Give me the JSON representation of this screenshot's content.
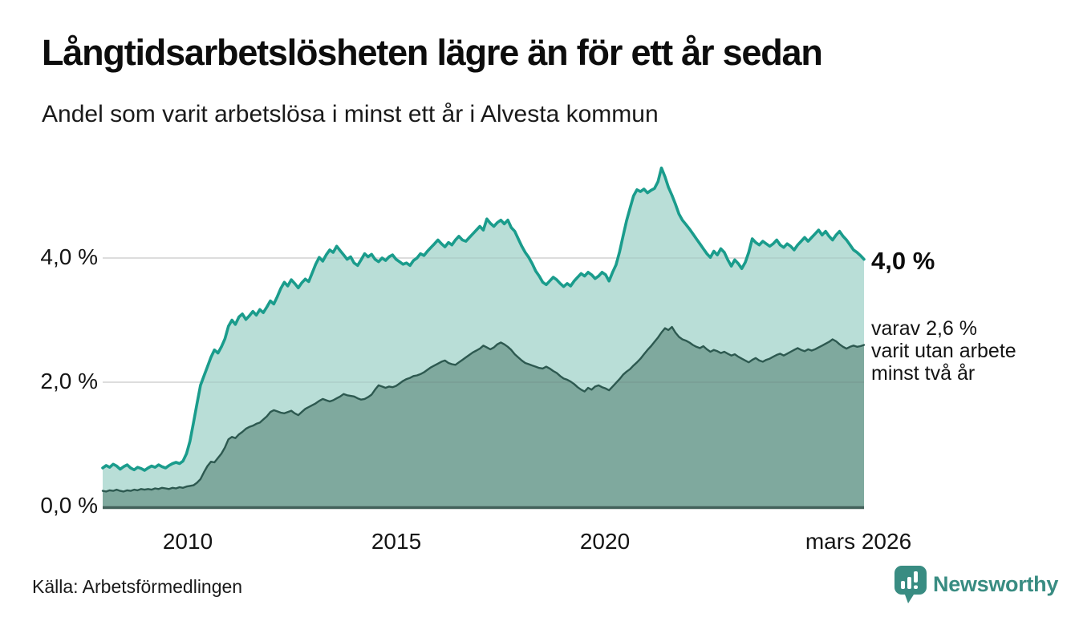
{
  "header": {
    "title": "Långtidsarbetslösheten lägre än för ett år sedan",
    "subtitle": "Andel som varit arbetslösa i minst ett år i Alvesta kommun"
  },
  "footer": {
    "source": "Källa: Arbetsförmedlingen",
    "logo_text": "Newsworthy"
  },
  "colors": {
    "line_primary": "#1a9c8c",
    "fill_primary": "#b9ded7",
    "line_secondary": "#2d5950",
    "fill_secondary": "#7fa99e",
    "baseline": "#42615a",
    "gridline": "#e2e2e2",
    "logo_teal": "#398c82"
  },
  "chart_data": {
    "type": "area",
    "title": "Långtidsarbetslösheten lägre än för ett år sedan",
    "subtitle": "Andel som varit arbetslösa i minst ett år i Alvesta kommun",
    "unit": "%",
    "x_domain": [
      2008.0,
      2026.1667
    ],
    "ylim": [
      0,
      5.8
    ],
    "grid": "horizontal",
    "x_start": 2008.0,
    "x_step": 0.083333,
    "y_ticks": [
      {
        "value": 0,
        "label": "0,0 %"
      },
      {
        "value": 2,
        "label": "2,0 %"
      },
      {
        "value": 4,
        "label": "4,0 %"
      }
    ],
    "x_ticks": [
      {
        "value": 2010,
        "label": "2010"
      },
      {
        "value": 2015,
        "label": "2015"
      },
      {
        "value": 2020,
        "label": "2020"
      },
      {
        "value": 2026.1667,
        "label": "mars 2026"
      }
    ],
    "annotations": {
      "end_value_primary": "4,0 %",
      "end_note": "varav 2,6 %\nvarit utan arbete\nminst två år"
    },
    "series": [
      {
        "name": "minst ett år",
        "end_value": 4.0,
        "values": [
          0.62,
          0.66,
          0.63,
          0.68,
          0.65,
          0.6,
          0.64,
          0.67,
          0.62,
          0.59,
          0.63,
          0.61,
          0.58,
          0.62,
          0.65,
          0.63,
          0.67,
          0.64,
          0.62,
          0.66,
          0.69,
          0.71,
          0.69,
          0.73,
          0.85,
          1.05,
          1.35,
          1.65,
          1.95,
          2.1,
          2.25,
          2.4,
          2.52,
          2.47,
          2.57,
          2.7,
          2.9,
          3.0,
          2.93,
          3.05,
          3.1,
          3.01,
          3.07,
          3.14,
          3.08,
          3.17,
          3.12,
          3.21,
          3.31,
          3.26,
          3.38,
          3.51,
          3.61,
          3.55,
          3.65,
          3.59,
          3.52,
          3.6,
          3.66,
          3.62,
          3.76,
          3.9,
          4.01,
          3.95,
          4.05,
          4.13,
          4.09,
          4.19,
          4.12,
          4.05,
          3.98,
          4.02,
          3.92,
          3.88,
          3.97,
          4.07,
          4.02,
          4.06,
          3.98,
          3.94,
          4.0,
          3.96,
          4.02,
          4.05,
          3.98,
          3.94,
          3.9,
          3.92,
          3.88,
          3.96,
          4.0,
          4.07,
          4.04,
          4.11,
          4.17,
          4.23,
          4.29,
          4.23,
          4.18,
          4.25,
          4.21,
          4.29,
          4.35,
          4.29,
          4.27,
          4.33,
          4.39,
          4.45,
          4.51,
          4.45,
          4.63,
          4.56,
          4.51,
          4.57,
          4.61,
          4.55,
          4.61,
          4.49,
          4.43,
          4.31,
          4.19,
          4.09,
          4.01,
          3.91,
          3.79,
          3.71,
          3.61,
          3.57,
          3.63,
          3.69,
          3.65,
          3.59,
          3.54,
          3.59,
          3.55,
          3.63,
          3.69,
          3.75,
          3.71,
          3.77,
          3.73,
          3.67,
          3.71,
          3.77,
          3.73,
          3.63,
          3.77,
          3.89,
          4.1,
          4.35,
          4.6,
          4.8,
          5.0,
          5.1,
          5.07,
          5.11,
          5.05,
          5.09,
          5.12,
          5.23,
          5.45,
          5.31,
          5.14,
          5.01,
          4.87,
          4.71,
          4.61,
          4.54,
          4.47,
          4.39,
          4.31,
          4.23,
          4.15,
          4.07,
          4.01,
          4.11,
          4.05,
          4.15,
          4.09,
          3.97,
          3.87,
          3.97,
          3.91,
          3.83,
          3.93,
          4.09,
          4.31,
          4.25,
          4.21,
          4.27,
          4.23,
          4.19,
          4.23,
          4.29,
          4.21,
          4.17,
          4.23,
          4.19,
          4.13,
          4.21,
          4.27,
          4.33,
          4.27,
          4.33,
          4.39,
          4.45,
          4.37,
          4.43,
          4.35,
          4.29,
          4.37,
          4.43,
          4.35,
          4.29,
          4.21,
          4.13,
          4.09,
          4.04,
          3.98
        ]
      },
      {
        "name": "minst två år",
        "end_value": 2.6,
        "values": [
          0.25,
          0.24,
          0.26,
          0.25,
          0.27,
          0.25,
          0.24,
          0.26,
          0.25,
          0.27,
          0.26,
          0.28,
          0.27,
          0.28,
          0.27,
          0.29,
          0.28,
          0.3,
          0.29,
          0.28,
          0.3,
          0.29,
          0.31,
          0.3,
          0.32,
          0.33,
          0.34,
          0.38,
          0.44,
          0.55,
          0.65,
          0.72,
          0.71,
          0.78,
          0.85,
          0.95,
          1.08,
          1.12,
          1.1,
          1.16,
          1.2,
          1.25,
          1.28,
          1.3,
          1.33,
          1.35,
          1.4,
          1.45,
          1.52,
          1.55,
          1.53,
          1.51,
          1.5,
          1.52,
          1.54,
          1.5,
          1.47,
          1.52,
          1.57,
          1.6,
          1.63,
          1.66,
          1.7,
          1.73,
          1.71,
          1.69,
          1.71,
          1.74,
          1.77,
          1.81,
          1.79,
          1.78,
          1.77,
          1.74,
          1.72,
          1.73,
          1.76,
          1.8,
          1.88,
          1.95,
          1.93,
          1.91,
          1.93,
          1.92,
          1.94,
          1.98,
          2.02,
          2.05,
          2.07,
          2.1,
          2.11,
          2.13,
          2.16,
          2.2,
          2.24,
          2.27,
          2.3,
          2.33,
          2.35,
          2.31,
          2.29,
          2.28,
          2.32,
          2.36,
          2.4,
          2.44,
          2.48,
          2.51,
          2.54,
          2.59,
          2.56,
          2.53,
          2.56,
          2.61,
          2.64,
          2.61,
          2.57,
          2.52,
          2.45,
          2.4,
          2.35,
          2.31,
          2.29,
          2.27,
          2.25,
          2.23,
          2.22,
          2.25,
          2.22,
          2.18,
          2.15,
          2.1,
          2.06,
          2.04,
          2.01,
          1.97,
          1.92,
          1.88,
          1.85,
          1.91,
          1.88,
          1.93,
          1.95,
          1.92,
          1.9,
          1.87,
          1.93,
          1.99,
          2.05,
          2.12,
          2.17,
          2.21,
          2.27,
          2.32,
          2.38,
          2.45,
          2.52,
          2.58,
          2.65,
          2.72,
          2.8,
          2.87,
          2.84,
          2.89,
          2.8,
          2.73,
          2.69,
          2.67,
          2.64,
          2.6,
          2.57,
          2.55,
          2.58,
          2.53,
          2.49,
          2.52,
          2.5,
          2.47,
          2.49,
          2.46,
          2.43,
          2.45,
          2.41,
          2.38,
          2.35,
          2.32,
          2.36,
          2.39,
          2.35,
          2.33,
          2.36,
          2.38,
          2.41,
          2.44,
          2.46,
          2.43,
          2.46,
          2.49,
          2.52,
          2.55,
          2.52,
          2.5,
          2.53,
          2.51,
          2.53,
          2.56,
          2.59,
          2.62,
          2.65,
          2.69,
          2.66,
          2.61,
          2.57,
          2.54,
          2.57,
          2.59,
          2.57,
          2.58,
          2.6
        ]
      }
    ]
  }
}
